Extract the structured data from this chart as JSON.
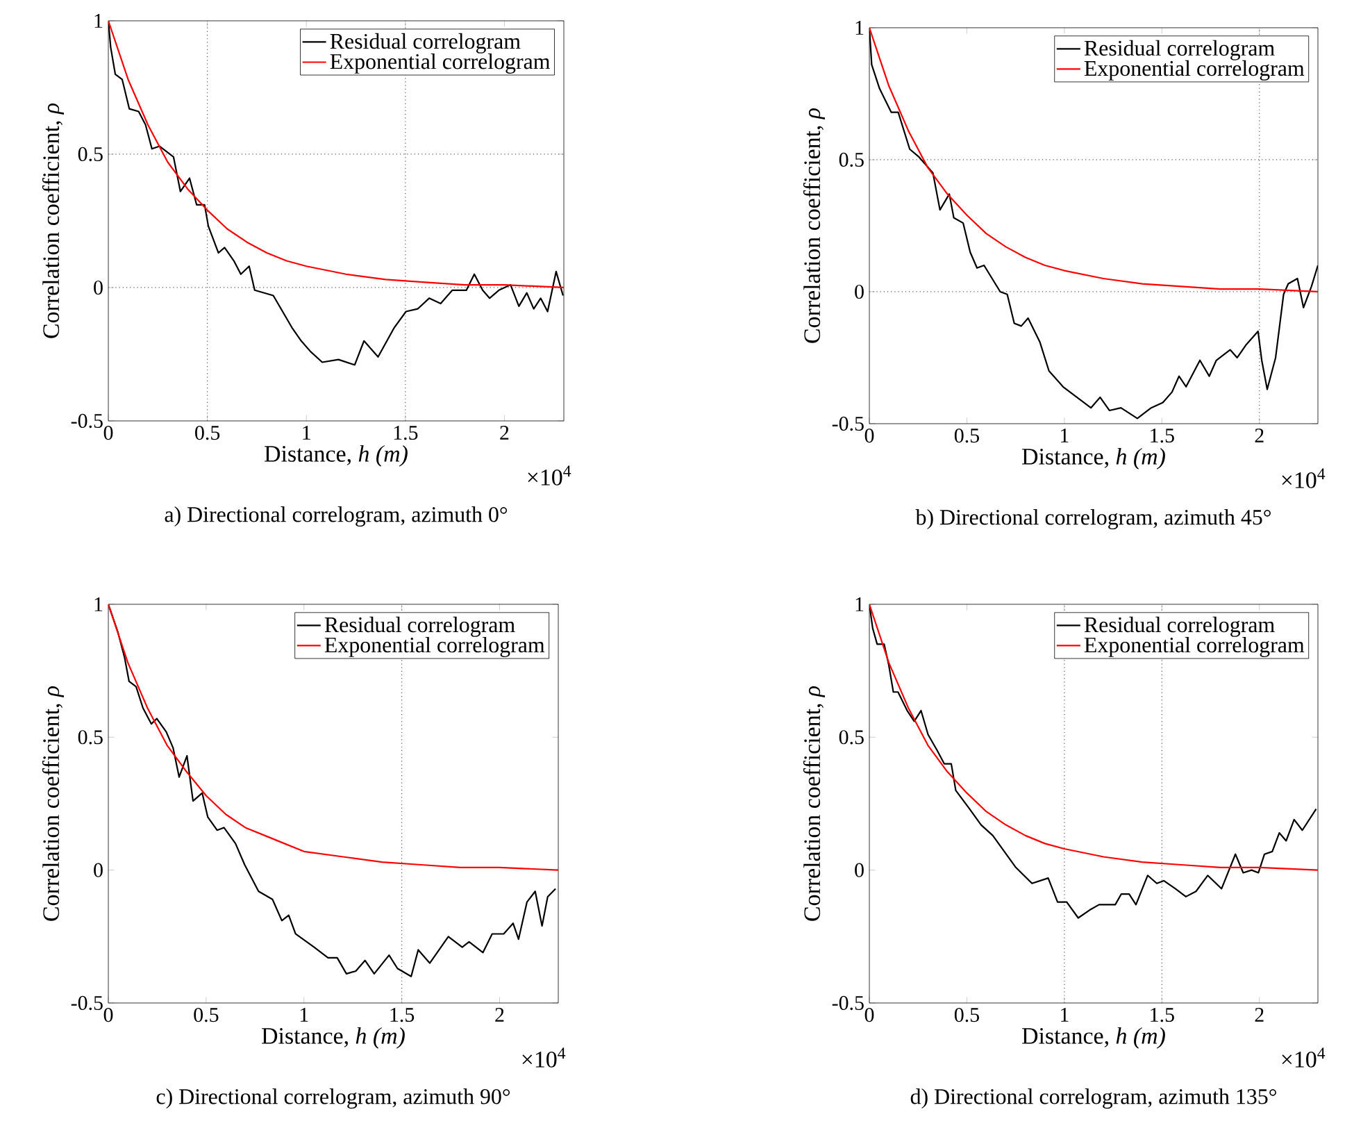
{
  "chart_data": [
    {
      "type": "line",
      "title": "a) Directional correlogram, azimuth 0°",
      "xlabel": "Distance, *h (m)*",
      "ylabel": "Correlation coefficient, *ρ*",
      "annotations": [
        "×10$^{4}$"
      ],
      "xlim": [
        0,
        2.3
      ],
      "ylim": [
        -0.5,
        1
      ],
      "xticks": [
        0,
        0.5,
        1,
        1.5,
        2
      ],
      "yticks": [
        -0.5,
        0,
        0.5,
        1
      ],
      "legend": "top right",
      "ref_lines": [
        {
          "axis": "x",
          "value": 0.5,
          "color": "#555555",
          "line_style": "dotted"
        },
        {
          "axis": "x",
          "value": 1.5,
          "color": "#555555",
          "line_style": "dotted"
        },
        {
          "axis": "y",
          "value": 0.5,
          "color": "#555555",
          "line_style": "dotted"
        },
        {
          "axis": "y",
          "value": 0,
          "color": "#555555",
          "line_style": "dotted"
        }
      ],
      "series": [
        {
          "name": "Residual correlogram",
          "color": "#000000",
          "x": [
            0,
            0.012,
            0.035,
            0.07,
            0.106,
            0.153,
            0.188,
            0.22,
            0.258,
            0.329,
            0.364,
            0.41,
            0.446,
            0.486,
            0.505,
            0.556,
            0.587,
            0.634,
            0.669,
            0.711,
            0.739,
            0.833,
            0.927,
            0.974,
            1.021,
            1.08,
            1.162,
            1.244,
            1.291,
            1.362,
            1.444,
            1.503,
            1.562,
            1.62,
            1.678,
            1.737,
            1.808,
            1.848,
            1.89,
            1.925,
            1.972,
            2.031,
            2.073,
            2.113,
            2.148,
            2.183,
            2.218,
            2.261,
            2.296
          ],
          "values": [
            1,
            0.9,
            0.8,
            0.78,
            0.67,
            0.66,
            0.61,
            0.52,
            0.53,
            0.49,
            0.36,
            0.41,
            0.31,
            0.31,
            0.23,
            0.13,
            0.15,
            0.1,
            0.05,
            0.08,
            -0.01,
            -0.03,
            -0.15,
            -0.2,
            -0.24,
            -0.28,
            -0.27,
            -0.29,
            -0.2,
            -0.26,
            -0.15,
            -0.09,
            -0.08,
            -0.04,
            -0.06,
            -0.01,
            -0.01,
            0.05,
            -0.01,
            -0.04,
            -0.01,
            0.01,
            -0.07,
            -0.02,
            -0.08,
            -0.04,
            -0.09,
            0.06,
            -0.03
          ]
        },
        {
          "name": "Exponential correlogram",
          "color": "#ff0000",
          "x": [
            0,
            0.1,
            0.2,
            0.3,
            0.4,
            0.5,
            0.6,
            0.7,
            0.8,
            0.9,
            1.0,
            1.2,
            1.4,
            1.6,
            1.8,
            2.0,
            2.3
          ],
          "values": [
            1,
            0.78,
            0.61,
            0.47,
            0.37,
            0.29,
            0.22,
            0.17,
            0.13,
            0.1,
            0.08,
            0.05,
            0.03,
            0.02,
            0.01,
            0.01,
            0
          ]
        }
      ]
    },
    {
      "type": "line",
      "title": "b) Directional correlogram, azimuth 45°",
      "xlabel": "Distance, *h (m)*",
      "ylabel": "Correlation coefficient, *ρ*",
      "annotations": [
        "×10$^{4}$"
      ],
      "xlim": [
        0,
        2.3
      ],
      "ylim": [
        -0.5,
        1
      ],
      "xticks": [
        0,
        0.5,
        1,
        1.5,
        2
      ],
      "yticks": [
        -0.5,
        0,
        0.5,
        1
      ],
      "legend": "top right",
      "ref_lines": [
        {
          "axis": "x",
          "value": 2,
          "color": "#555555",
          "line_style": "dotted"
        },
        {
          "axis": "y",
          "value": 0.5,
          "color": "#555555",
          "line_style": "dotted"
        },
        {
          "axis": "y",
          "value": 0,
          "color": "#555555",
          "line_style": "dotted"
        }
      ],
      "series": [
        {
          "name": "Residual correlogram",
          "color": "#000000",
          "x": [
            0,
            0.012,
            0.052,
            0.112,
            0.148,
            0.207,
            0.255,
            0.326,
            0.362,
            0.41,
            0.433,
            0.481,
            0.517,
            0.552,
            0.588,
            0.671,
            0.707,
            0.743,
            0.779,
            0.814,
            0.874,
            0.921,
            0.993,
            1.064,
            1.136,
            1.183,
            1.231,
            1.29,
            1.374,
            1.445,
            1.505,
            1.552,
            1.588,
            1.624,
            1.695,
            1.743,
            1.779,
            1.85,
            1.886,
            1.933,
            1.993,
            2.012,
            2.04,
            2.083,
            2.124,
            2.148,
            2.195,
            2.226,
            2.267,
            2.3
          ],
          "values": [
            1,
            0.86,
            0.77,
            0.68,
            0.68,
            0.54,
            0.51,
            0.45,
            0.31,
            0.37,
            0.28,
            0.26,
            0.15,
            0.09,
            0.1,
            0,
            -0.01,
            -0.12,
            -0.13,
            -0.1,
            -0.19,
            -0.3,
            -0.36,
            -0.4,
            -0.44,
            -0.4,
            -0.45,
            -0.44,
            -0.48,
            -0.44,
            -0.42,
            -0.38,
            -0.32,
            -0.36,
            -0.26,
            -0.32,
            -0.26,
            -0.22,
            -0.25,
            -0.2,
            -0.15,
            -0.26,
            -0.37,
            -0.25,
            -0.01,
            0.03,
            0.05,
            -0.06,
            0.02,
            0.1
          ]
        },
        {
          "name": "Exponential correlogram",
          "color": "#ff0000",
          "x": [
            0,
            0.1,
            0.2,
            0.3,
            0.4,
            0.5,
            0.6,
            0.7,
            0.8,
            0.9,
            1.0,
            1.2,
            1.4,
            1.6,
            1.8,
            2.0,
            2.3
          ],
          "values": [
            1,
            0.78,
            0.61,
            0.47,
            0.37,
            0.29,
            0.22,
            0.17,
            0.13,
            0.1,
            0.08,
            0.05,
            0.03,
            0.02,
            0.01,
            0.01,
            0
          ]
        }
      ]
    },
    {
      "type": "line",
      "title": "c) Directional correlogram, azimuth 90°",
      "xlabel": "Distance, *h (m)*",
      "ylabel": "Correlation coefficient, *ρ*",
      "annotations": [
        "×10$^{4}$"
      ],
      "xlim": [
        0,
        2.3
      ],
      "ylim": [
        -0.5,
        1
      ],
      "xticks": [
        0,
        0.5,
        1,
        1.5,
        2
      ],
      "yticks": [
        -0.5,
        0,
        0.5,
        1
      ],
      "legend": "top right",
      "ref_lines": [
        {
          "axis": "x",
          "value": 1.5,
          "color": "#555555",
          "line_style": "dotted"
        }
      ],
      "series": [
        {
          "name": "Residual correlogram",
          "color": "#000000",
          "x": [
            0,
            0.047,
            0.083,
            0.106,
            0.142,
            0.177,
            0.22,
            0.248,
            0.296,
            0.331,
            0.362,
            0.402,
            0.433,
            0.48,
            0.508,
            0.556,
            0.591,
            0.65,
            0.697,
            0.768,
            0.839,
            0.887,
            0.922,
            0.957,
            1.052,
            1.123,
            1.17,
            1.217,
            1.265,
            1.312,
            1.359,
            1.435,
            1.478,
            1.548,
            1.584,
            1.643,
            1.738,
            1.809,
            1.844,
            1.915,
            1.962,
            2.021,
            2.069,
            2.097,
            2.14,
            2.182,
            2.217,
            2.246,
            2.286
          ],
          "values": [
            1,
            0.9,
            0.8,
            0.71,
            0.69,
            0.61,
            0.55,
            0.57,
            0.52,
            0.46,
            0.35,
            0.43,
            0.26,
            0.29,
            0.2,
            0.15,
            0.16,
            0.1,
            0.02,
            -0.08,
            -0.11,
            -0.19,
            -0.17,
            -0.24,
            -0.29,
            -0.33,
            -0.33,
            -0.39,
            -0.38,
            -0.34,
            -0.39,
            -0.32,
            -0.37,
            -0.4,
            -0.3,
            -0.35,
            -0.25,
            -0.29,
            -0.27,
            -0.31,
            -0.24,
            -0.24,
            -0.2,
            -0.26,
            -0.12,
            -0.08,
            -0.21,
            -0.1,
            -0.07
          ]
        },
        {
          "name": "Exponential correlogram",
          "color": "#ff0000",
          "x": [
            0,
            0.1,
            0.2,
            0.3,
            0.4,
            0.5,
            0.6,
            0.7,
            0.8,
            0.9,
            1.0,
            1.2,
            1.4,
            1.6,
            1.8,
            2.0,
            2.3
          ],
          "values": [
            1,
            0.78,
            0.61,
            0.47,
            0.37,
            0.28,
            0.21,
            0.16,
            0.13,
            0.1,
            0.07,
            0.05,
            0.03,
            0.02,
            0.01,
            0.01,
            0
          ]
        }
      ]
    },
    {
      "type": "line",
      "title": "d) Directional correlogram, azimuth 135°",
      "xlabel": "Distance, *h (m)*",
      "ylabel": "Correlation coefficient, *ρ*",
      "annotations": [
        "×10$^{4}$"
      ],
      "xlim": [
        0,
        2.3
      ],
      "ylim": [
        -0.5,
        1
      ],
      "xticks": [
        0,
        0.5,
        1,
        1.5,
        2
      ],
      "yticks": [
        -0.5,
        0,
        0.5,
        1
      ],
      "legend": "top right",
      "ref_lines": [
        {
          "axis": "x",
          "value": 1,
          "color": "#555555",
          "line_style": "dotted"
        },
        {
          "axis": "x",
          "value": 1.5,
          "color": "#555555",
          "line_style": "dotted"
        }
      ],
      "series": [
        {
          "name": "Residual correlogram",
          "color": "#000000",
          "x": [
            0,
            0.017,
            0.04,
            0.076,
            0.1,
            0.123,
            0.147,
            0.194,
            0.23,
            0.265,
            0.301,
            0.348,
            0.384,
            0.42,
            0.443,
            0.514,
            0.573,
            0.633,
            0.692,
            0.751,
            0.834,
            0.917,
            0.965,
            1.012,
            1.071,
            1.13,
            1.178,
            1.261,
            1.292,
            1.332,
            1.367,
            1.427,
            1.474,
            1.51,
            1.569,
            1.623,
            1.675,
            1.735,
            1.806,
            1.877,
            1.917,
            1.96,
            1.995,
            2.026,
            2.066,
            2.102,
            2.137,
            2.178,
            2.22,
            2.291
          ],
          "values": [
            1,
            0.91,
            0.85,
            0.85,
            0.77,
            0.67,
            0.67,
            0.6,
            0.56,
            0.6,
            0.51,
            0.45,
            0.4,
            0.4,
            0.3,
            0.23,
            0.17,
            0.13,
            0.07,
            0.01,
            -0.05,
            -0.03,
            -0.12,
            -0.12,
            -0.18,
            -0.15,
            -0.13,
            -0.13,
            -0.09,
            -0.09,
            -0.13,
            -0.02,
            -0.05,
            -0.04,
            -0.07,
            -0.1,
            -0.08,
            -0.02,
            -0.07,
            0.06,
            -0.01,
            0,
            -0.01,
            0.06,
            0.07,
            0.14,
            0.11,
            0.19,
            0.15,
            0.23
          ]
        },
        {
          "name": "Exponential correlogram",
          "color": "#ff0000",
          "x": [
            0,
            0.1,
            0.2,
            0.3,
            0.4,
            0.5,
            0.6,
            0.7,
            0.8,
            0.9,
            1.0,
            1.2,
            1.4,
            1.6,
            1.8,
            2.0,
            2.3
          ],
          "values": [
            1,
            0.78,
            0.61,
            0.47,
            0.37,
            0.29,
            0.22,
            0.17,
            0.13,
            0.1,
            0.08,
            0.05,
            0.03,
            0.02,
            0.01,
            0.01,
            0
          ]
        }
      ]
    }
  ]
}
